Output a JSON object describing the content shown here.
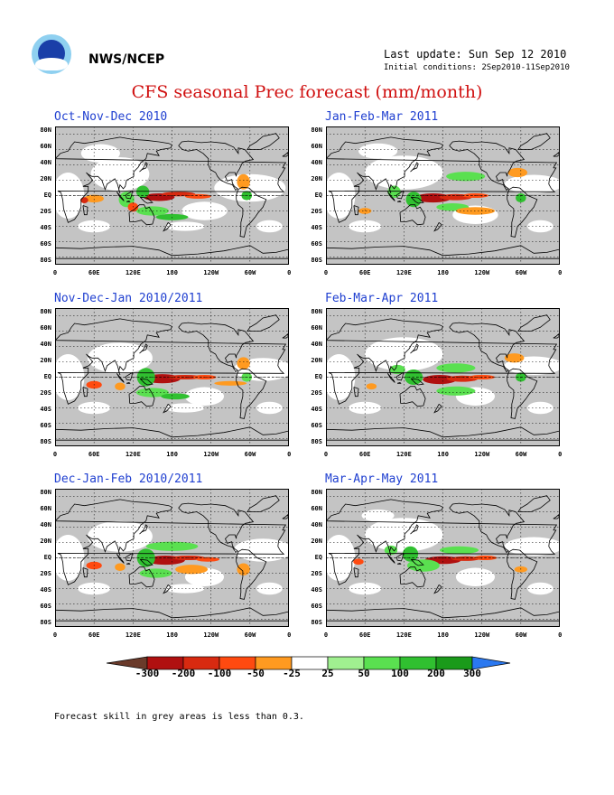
{
  "header": {
    "org": "NWS/NCEP",
    "last_update": "Last update: Sun Sep 12 2010",
    "initial_conditions": "Initial conditions: 2Sep2010-11Sep2010",
    "title": "CFS seasonal Prec forecast (mm/month)"
  },
  "panels": [
    {
      "title": "Oct-Nov-Dec 2010"
    },
    {
      "title": "Jan-Feb-Mar 2011"
    },
    {
      "title": "Nov-Dec-Jan 2010/2011"
    },
    {
      "title": "Feb-Mar-Apr 2011"
    },
    {
      "title": "Dec-Jan-Feb 2010/2011"
    },
    {
      "title": "Mar-Apr-May 2011"
    }
  ],
  "axes": {
    "lat_labels": [
      "80N",
      "60N",
      "40N",
      "20N",
      "EQ",
      "20S",
      "40S",
      "60S",
      "80S"
    ],
    "lon_labels": [
      "0",
      "60E",
      "120E",
      "180",
      "120W",
      "60W",
      "0"
    ]
  },
  "colorbar": {
    "ticks": [
      "-300",
      "-200",
      "-100",
      "-50",
      "-25",
      "25",
      "50",
      "100",
      "200",
      "300"
    ],
    "colors": [
      "#6a3a2a",
      "#b01010",
      "#d82a10",
      "#ff4a10",
      "#ff9a20",
      "#ffffff",
      "#a0f090",
      "#5ae050",
      "#30c030",
      "#1a9a1a",
      "#2a78f0"
    ]
  },
  "footnote": "Forecast skill in grey areas is less than 0.3.",
  "colors": {
    "grey": "#c4c4c4",
    "title_red": "#d01010",
    "panel_title_blue": "#1f3fd0"
  }
}
